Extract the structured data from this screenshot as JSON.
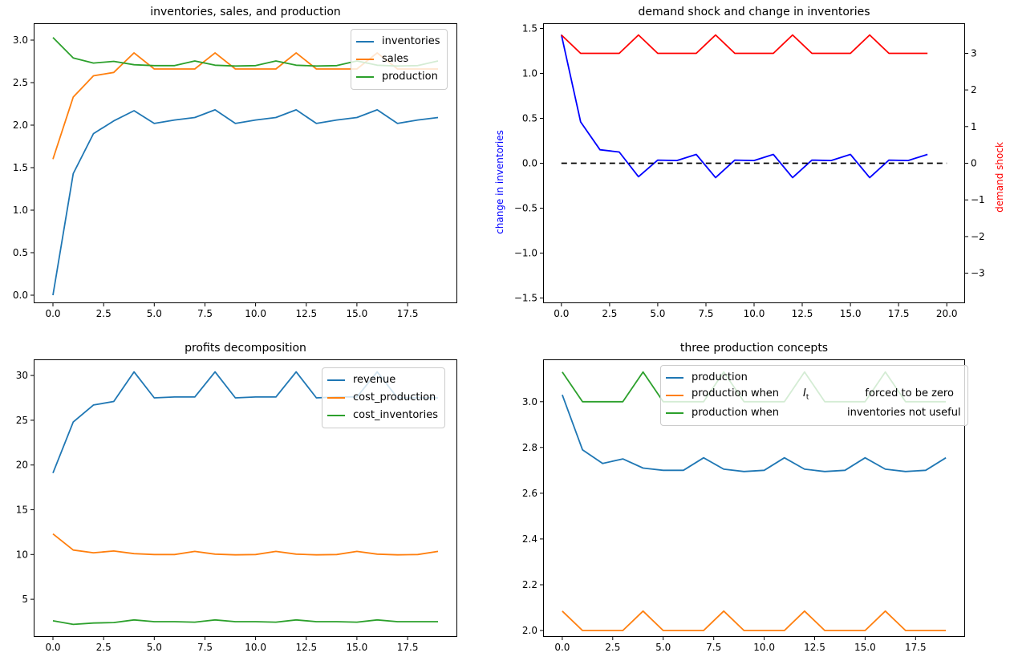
{
  "figure": {
    "background": "#ffffff"
  },
  "palette": {
    "mpl_blue": "#1f77b4",
    "mpl_orange": "#ff7f0e",
    "mpl_green": "#2ca02c",
    "pure_blue": "#0000ff",
    "pure_red": "#ff0000",
    "black": "#000000",
    "legend_edge": "#cccccc"
  },
  "chart_data": [
    {
      "type": "line",
      "title": "inventories, sales, and production",
      "xlabel": "",
      "ylabel": "",
      "grid": false,
      "x": [
        0,
        1,
        2,
        3,
        4,
        5,
        6,
        7,
        8,
        9,
        10,
        11,
        12,
        13,
        14,
        15,
        16,
        17,
        18,
        19
      ],
      "xlim": [
        -0.95,
        19.95
      ],
      "ylim": [
        -0.094,
        3.198
      ],
      "xticks": {
        "values": [
          0,
          2.5,
          5,
          7.5,
          10,
          12.5,
          15,
          17.5
        ],
        "labels": [
          "0.0",
          "2.5",
          "5.0",
          "7.5",
          "10.0",
          "12.5",
          "15.0",
          "17.5"
        ]
      },
      "yticks": {
        "values": [
          0,
          0.5,
          1,
          1.5,
          2,
          2.5,
          3
        ],
        "labels": [
          "0.0",
          "0.5",
          "1.0",
          "1.5",
          "2.0",
          "2.5",
          "3.0"
        ]
      },
      "series": [
        {
          "name": "inventories",
          "color": "#1f77b4",
          "axis": "left",
          "dash": false,
          "values": [
            0.0,
            1.43,
            1.9,
            2.05,
            2.17,
            2.02,
            2.06,
            2.09,
            2.18,
            2.02,
            2.06,
            2.09,
            2.18,
            2.02,
            2.06,
            2.09,
            2.18,
            2.02,
            2.06,
            2.09
          ]
        },
        {
          "name": "sales",
          "color": "#ff7f0e",
          "axis": "left",
          "dash": false,
          "values": [
            1.6,
            2.33,
            2.58,
            2.62,
            2.85,
            2.66,
            2.66,
            2.66,
            2.85,
            2.66,
            2.66,
            2.66,
            2.85,
            2.66,
            2.66,
            2.66,
            2.85,
            2.66,
            2.66,
            2.66
          ]
        },
        {
          "name": "production",
          "color": "#2ca02c",
          "axis": "left",
          "dash": false,
          "values": [
            3.03,
            2.79,
            2.73,
            2.75,
            2.71,
            2.7,
            2.7,
            2.755,
            2.705,
            2.695,
            2.7,
            2.755,
            2.705,
            2.695,
            2.7,
            2.755,
            2.705,
            2.695,
            2.7,
            2.755
          ]
        }
      ],
      "legend": {
        "position": "upper right",
        "entries": [
          {
            "color": "#1f77b4",
            "parts": [
              {
                "text": "inventories"
              }
            ]
          },
          {
            "color": "#ff7f0e",
            "parts": [
              {
                "text": "sales"
              }
            ]
          },
          {
            "color": "#2ca02c",
            "parts": [
              {
                "text": "production"
              }
            ]
          }
        ]
      }
    },
    {
      "type": "line",
      "title": "demand shock and change in inventories",
      "xlabel": "",
      "ylabel_left": "change in inventories",
      "ylabel_left_color": "#0000ff",
      "ylabel_right": "demand shock",
      "ylabel_right_color": "#ff0000",
      "grid": false,
      "x": [
        0,
        1,
        2,
        3,
        4,
        5,
        6,
        7,
        8,
        9,
        10,
        11,
        12,
        13,
        14,
        15,
        16,
        17,
        18,
        19
      ],
      "xlim": [
        -0.95,
        20.95
      ],
      "ylim": [
        -1.558,
        1.558
      ],
      "ylim_right": [
        -3.82,
        3.82
      ],
      "xticks": {
        "values": [
          0,
          2.5,
          5,
          7.5,
          10,
          12.5,
          15,
          17.5,
          20
        ],
        "labels": [
          "0.0",
          "2.5",
          "5.0",
          "7.5",
          "10.0",
          "12.5",
          "15.0",
          "17.5",
          "20.0"
        ]
      },
      "yticks": {
        "values": [
          -1.5,
          -1,
          -0.5,
          0,
          0.5,
          1,
          1.5
        ],
        "labels": [
          "−1.5",
          "−1.0",
          "−0.5",
          "0.0",
          "0.5",
          "1.0",
          "1.5"
        ]
      },
      "yticks_right": {
        "values": [
          -3,
          -2,
          -1,
          0,
          1,
          2,
          3
        ],
        "labels": [
          "−3",
          "−2",
          "−1",
          "0",
          "1",
          "2",
          "3"
        ]
      },
      "series": [
        {
          "name": "change in inventories",
          "color": "#0000ff",
          "axis": "left",
          "dash": false,
          "values": [
            1.43,
            0.46,
            0.15,
            0.125,
            -0.15,
            0.035,
            0.03,
            0.098,
            -0.16,
            0.035,
            0.03,
            0.098,
            -0.16,
            0.035,
            0.03,
            0.098,
            -0.16,
            0.035,
            0.03,
            0.098
          ]
        },
        {
          "name": "zero line",
          "color": "#000000",
          "axis": "left",
          "dash": true,
          "x": [
            0,
            1,
            2,
            3,
            4,
            5,
            6,
            7,
            8,
            9,
            10,
            11,
            12,
            13,
            14,
            15,
            16,
            17,
            18,
            19,
            20
          ],
          "values": [
            0,
            0,
            0,
            0,
            0,
            0,
            0,
            0,
            0,
            0,
            0,
            0,
            0,
            0,
            0,
            0,
            0,
            0,
            0,
            0,
            0
          ]
        },
        {
          "name": "demand shock",
          "color": "#ff0000",
          "axis": "right",
          "dash": false,
          "values": [
            3.5,
            3,
            3,
            3,
            3.5,
            3,
            3,
            3,
            3.5,
            3,
            3,
            3,
            3.5,
            3,
            3,
            3,
            3.5,
            3,
            3,
            3
          ]
        }
      ],
      "legend": null
    },
    {
      "type": "line",
      "title": "profits decomposition",
      "xlabel": "",
      "ylabel": "",
      "grid": false,
      "x": [
        0,
        1,
        2,
        3,
        4,
        5,
        6,
        7,
        8,
        9,
        10,
        11,
        12,
        13,
        14,
        15,
        16,
        17,
        18,
        19
      ],
      "xlim": [
        -0.95,
        19.95
      ],
      "ylim": [
        0.8,
        31.8
      ],
      "xticks": {
        "values": [
          0,
          2.5,
          5,
          7.5,
          10,
          12.5,
          15,
          17.5
        ],
        "labels": [
          "0.0",
          "2.5",
          "5.0",
          "7.5",
          "10.0",
          "12.5",
          "15.0",
          "17.5"
        ]
      },
      "yticks": {
        "values": [
          5,
          10,
          15,
          20,
          25,
          30
        ],
        "labels": [
          "5",
          "10",
          "15",
          "20",
          "25",
          "30"
        ]
      },
      "series": [
        {
          "name": "revenue",
          "color": "#1f77b4",
          "axis": "left",
          "dash": false,
          "values": [
            19.1,
            24.8,
            26.7,
            27.1,
            30.4,
            27.5,
            27.6,
            27.6,
            30.4,
            27.5,
            27.6,
            27.6,
            30.4,
            27.5,
            27.6,
            27.6,
            30.4,
            27.5,
            27.5,
            27.5
          ]
        },
        {
          "name": "cost_production",
          "color": "#ff7f0e",
          "axis": "left",
          "dash": false,
          "values": [
            12.3,
            10.5,
            10.2,
            10.4,
            10.1,
            10.0,
            10.0,
            10.35,
            10.05,
            9.97,
            10.0,
            10.35,
            10.05,
            9.97,
            10.0,
            10.35,
            10.05,
            9.97,
            10.0,
            10.35
          ]
        },
        {
          "name": "cost_inventories",
          "color": "#2ca02c",
          "axis": "left",
          "dash": false,
          "values": [
            2.6,
            2.2,
            2.35,
            2.4,
            2.7,
            2.5,
            2.5,
            2.45,
            2.7,
            2.5,
            2.5,
            2.45,
            2.7,
            2.5,
            2.5,
            2.45,
            2.7,
            2.5,
            2.5,
            2.5
          ]
        }
      ],
      "legend": {
        "position": "upper right",
        "entries": [
          {
            "color": "#1f77b4",
            "parts": [
              {
                "text": "revenue"
              }
            ]
          },
          {
            "color": "#ff7f0e",
            "parts": [
              {
                "text": "cost_production"
              }
            ]
          },
          {
            "color": "#2ca02c",
            "parts": [
              {
                "text": "cost_inventories"
              }
            ]
          }
        ]
      }
    },
    {
      "type": "line",
      "title": "three production concepts",
      "xlabel": "",
      "ylabel": "",
      "grid": false,
      "x": [
        0,
        1,
        2,
        3,
        4,
        5,
        6,
        7,
        8,
        9,
        10,
        11,
        12,
        13,
        14,
        15,
        16,
        17,
        18,
        19
      ],
      "xlim": [
        -0.95,
        19.95
      ],
      "ylim": [
        1.972,
        3.185
      ],
      "xticks": {
        "values": [
          0,
          2.5,
          5,
          7.5,
          10,
          12.5,
          15,
          17.5
        ],
        "labels": [
          "0.0",
          "2.5",
          "5.0",
          "7.5",
          "10.0",
          "12.5",
          "15.0",
          "17.5"
        ]
      },
      "yticks": {
        "values": [
          2.0,
          2.2,
          2.4,
          2.6,
          2.8,
          3.0
        ],
        "labels": [
          "2.0",
          "2.2",
          "2.4",
          "2.6",
          "2.8",
          "3.0"
        ]
      },
      "series": [
        {
          "name": "production",
          "color": "#1f77b4",
          "axis": "left",
          "dash": false,
          "values": [
            3.03,
            2.79,
            2.73,
            2.75,
            2.71,
            2.7,
            2.7,
            2.755,
            2.705,
            2.695,
            2.7,
            2.755,
            2.705,
            2.695,
            2.7,
            2.755,
            2.705,
            2.695,
            2.7,
            2.755
          ]
        },
        {
          "name": "production when I_t forced to be zero",
          "color": "#ff7f0e",
          "axis": "left",
          "dash": false,
          "values": [
            2.085,
            2.0,
            2.0,
            2.0,
            2.085,
            2.0,
            2.0,
            2.0,
            2.085,
            2.0,
            2.0,
            2.0,
            2.085,
            2.0,
            2.0,
            2.0,
            2.085,
            2.0,
            2.0,
            2.0
          ]
        },
        {
          "name": "production when inventories not useful",
          "color": "#2ca02c",
          "axis": "left",
          "dash": false,
          "values": [
            3.13,
            3.0,
            3.0,
            3.0,
            3.13,
            3.0,
            3.0,
            3.0,
            3.13,
            3.0,
            3.0,
            3.0,
            3.13,
            3.0,
            3.0,
            3.0,
            3.13,
            3.0,
            3.0,
            3.0
          ]
        }
      ],
      "legend": {
        "position": "upper right",
        "entries": [
          {
            "color": "#1f77b4",
            "parts": [
              {
                "text": "production"
              }
            ]
          },
          {
            "color": "#ff7f0e",
            "parts": [
              {
                "text": "production when"
              },
              {
                "gap": 30
              },
              {
                "math": "I",
                "sub": "t"
              },
              {
                "gap": 70
              },
              {
                "text": "forced to be zero"
              }
            ]
          },
          {
            "color": "#2ca02c",
            "parts": [
              {
                "text": "production when"
              },
              {
                "gap": 85
              },
              {
                "text": "inventories not useful"
              }
            ]
          }
        ]
      }
    }
  ]
}
